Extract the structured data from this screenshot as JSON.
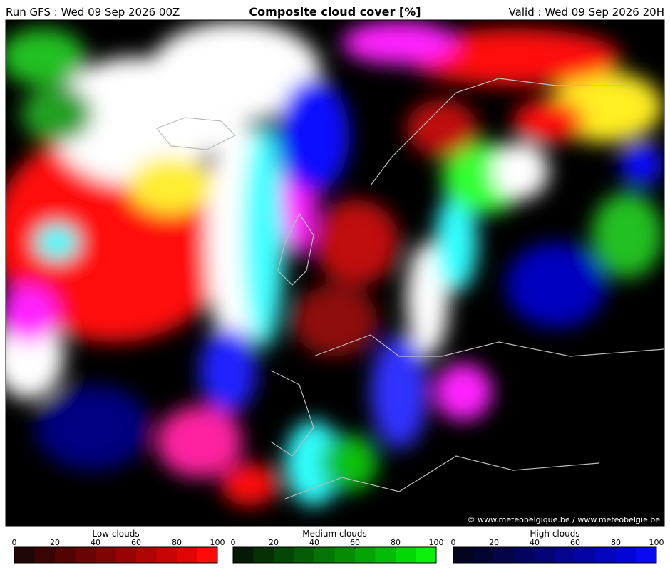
{
  "header": {
    "run": "Run GFS : Wed 09 Sep 2026 00Z",
    "title": "Composite cloud cover [%]",
    "valid": "Valid : Wed 09 Sep 2026 20H"
  },
  "credit": "© www.meteobelgique.be / www.meteobelgie.be",
  "legends": [
    {
      "label": "Low clouds",
      "ticks": [
        0,
        20,
        40,
        60,
        80,
        100
      ],
      "colors": [
        "#200606",
        "#380404",
        "#500404",
        "#680404",
        "#800404",
        "#980404",
        "#b00404",
        "#c80404",
        "#e00404",
        "#ff0a0a"
      ]
    },
    {
      "label": "Medium clouds",
      "ticks": [
        0,
        20,
        40,
        60,
        80,
        100
      ],
      "colors": [
        "#041a04",
        "#043004",
        "#044604",
        "#045c04",
        "#047404",
        "#048c04",
        "#04a404",
        "#04bc04",
        "#04d804",
        "#0af00a"
      ]
    },
    {
      "label": "High clouds",
      "ticks": [
        0,
        20,
        40,
        60,
        80,
        100
      ],
      "colors": [
        "#04041e",
        "#040432",
        "#040448",
        "#04045e",
        "#040476",
        "#04048e",
        "#0404a6",
        "#0404be",
        "#0404d8",
        "#0a0af0"
      ]
    }
  ]
}
